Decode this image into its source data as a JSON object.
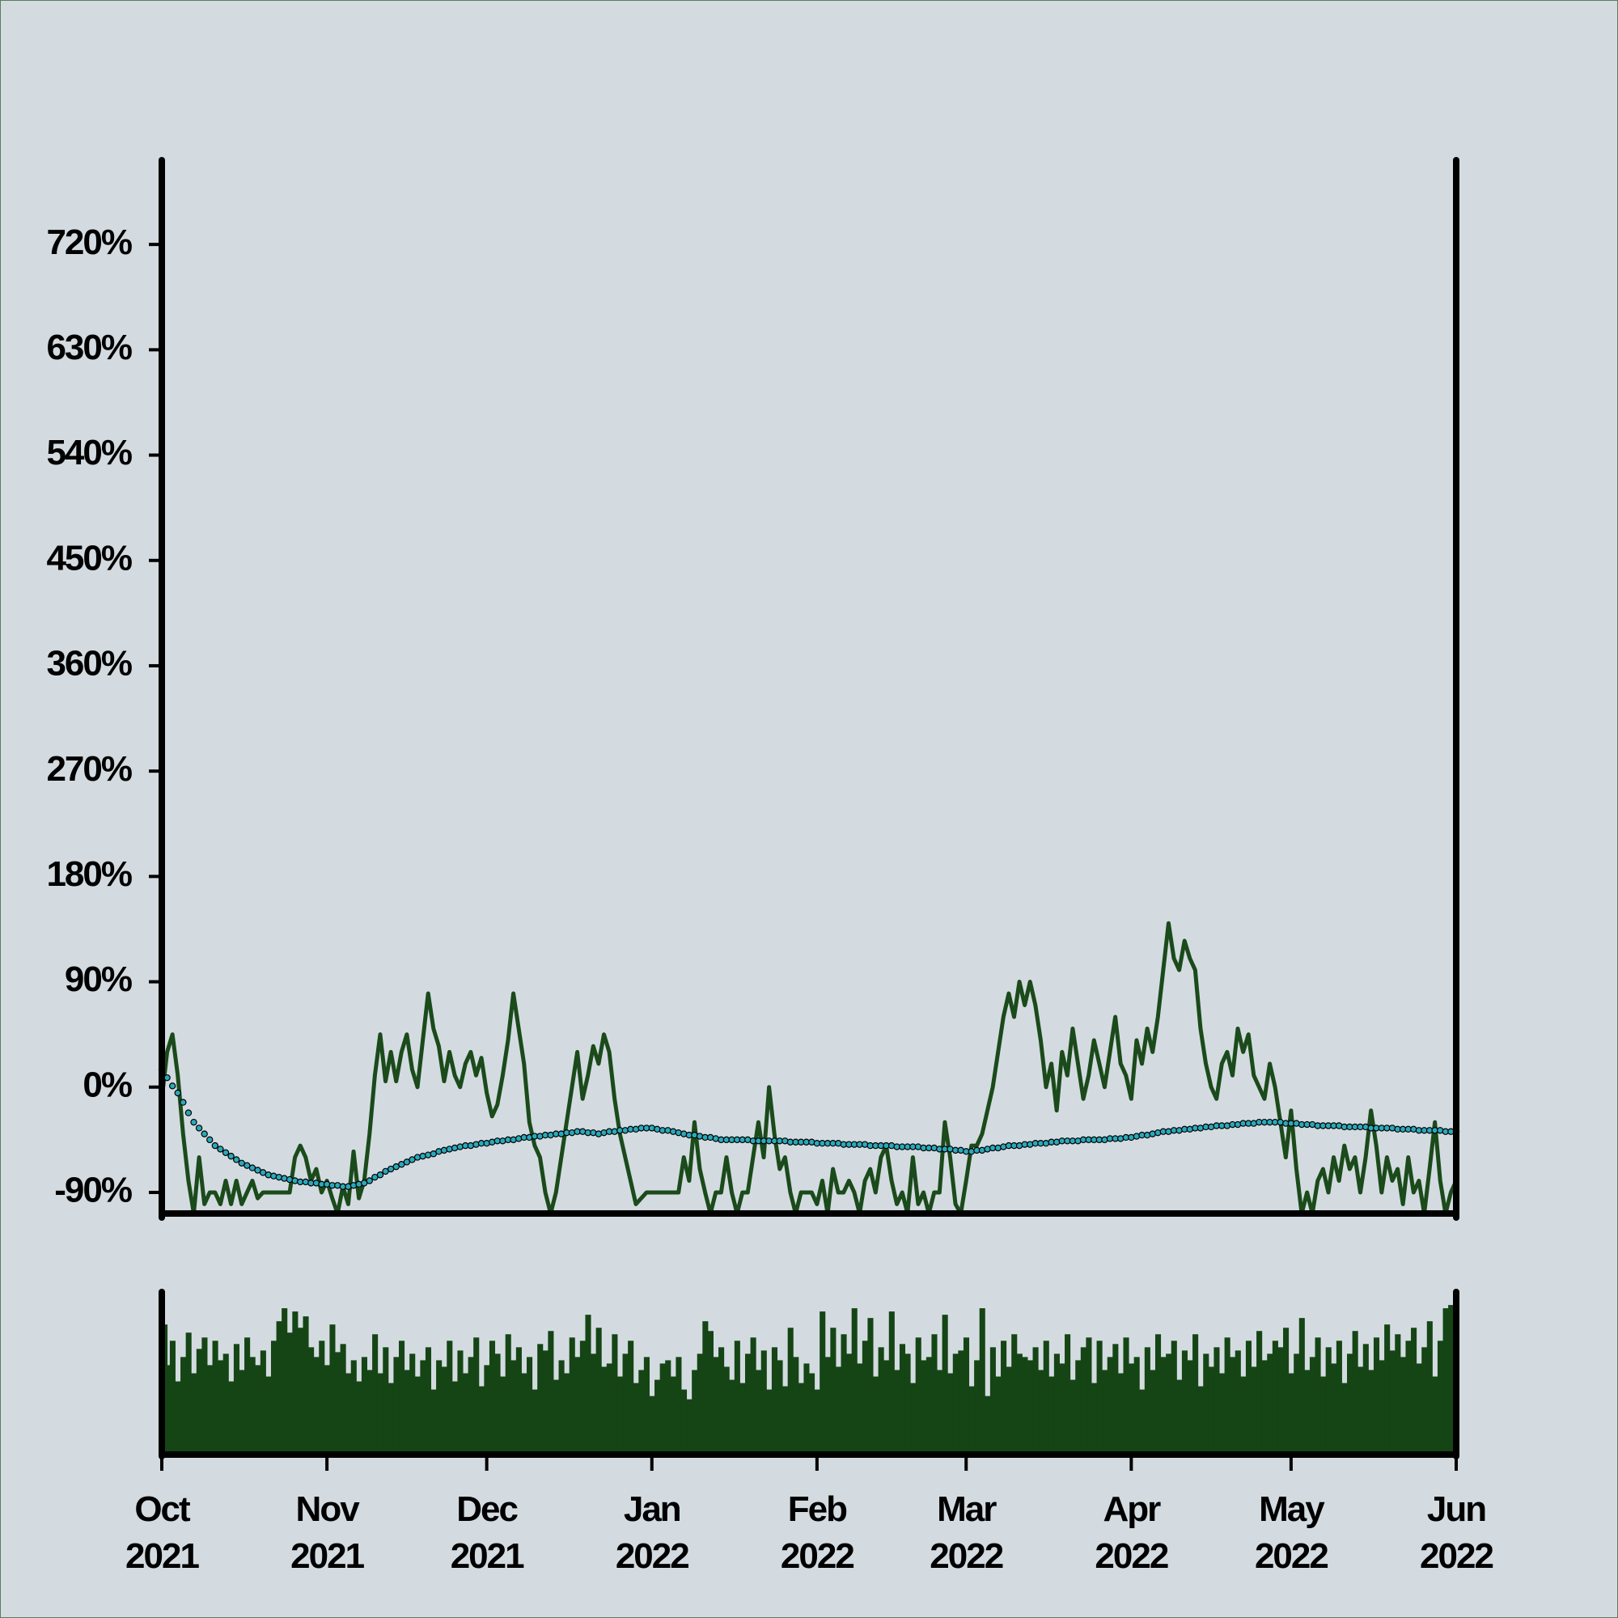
{
  "chart_data": {
    "type": "line",
    "categories": [
      "Oct 2021",
      null,
      null,
      null,
      null,
      null,
      null,
      null,
      null,
      null,
      null,
      null,
      null,
      null,
      null,
      null,
      null,
      null,
      null,
      null,
      null,
      null,
      null,
      null,
      null,
      null,
      null,
      null,
      null,
      null,
      null,
      "Nov 2021",
      null,
      null,
      null,
      null,
      null,
      null,
      null,
      null,
      null,
      null,
      null,
      null,
      null,
      null,
      null,
      null,
      null,
      null,
      null,
      null,
      null,
      null,
      null,
      null,
      null,
      null,
      null,
      null,
      null,
      "Dec 2021",
      null,
      null,
      null,
      null,
      null,
      null,
      null,
      null,
      null,
      null,
      null,
      null,
      null,
      null,
      null,
      null,
      null,
      null,
      null,
      null,
      null,
      null,
      null,
      null,
      null,
      null,
      null,
      null,
      null,
      null,
      "Jan 2022",
      null,
      null,
      null,
      null,
      null,
      null,
      null,
      null,
      null,
      null,
      null,
      null,
      null,
      null,
      null,
      null,
      null,
      null,
      null,
      null,
      null,
      null,
      null,
      null,
      null,
      null,
      null,
      null,
      null,
      null,
      "Feb 2022",
      null,
      null,
      null,
      null,
      null,
      null,
      null,
      null,
      null,
      null,
      null,
      null,
      null,
      null,
      null,
      null,
      null,
      null,
      null,
      null,
      null,
      null,
      null,
      null,
      null,
      null,
      null,
      "Mar 2022",
      null,
      null,
      null,
      null,
      null,
      null,
      null,
      null,
      null,
      null,
      null,
      null,
      null,
      null,
      null,
      null,
      null,
      null,
      null,
      null,
      null,
      null,
      null,
      null,
      null,
      null,
      null,
      null,
      null,
      null,
      "Apr 2022",
      null,
      null,
      null,
      null,
      null,
      null,
      null,
      null,
      null,
      null,
      null,
      null,
      null,
      null,
      null,
      null,
      null,
      null,
      null,
      null,
      null,
      null,
      null,
      null,
      null,
      null,
      null,
      null,
      null,
      "May 2022",
      null,
      null,
      null,
      null,
      null,
      null,
      null,
      null,
      null,
      null,
      null,
      null,
      null,
      null,
      null,
      null,
      null,
      null,
      null,
      null,
      null,
      null,
      null,
      null,
      null,
      null,
      null,
      null,
      null,
      null,
      "Jun 2022"
    ],
    "series": [
      {
        "style": "line",
        "color": "#1b4a1b",
        "values": [
          -10,
          30,
          45,
          10,
          -40,
          -80,
          -108,
          -60,
          -100,
          -90,
          -90,
          -100,
          -80,
          -100,
          -80,
          -100,
          -90,
          -80,
          -95,
          -90,
          -90,
          -90,
          -90,
          -90,
          -90,
          -60,
          -50,
          -60,
          -80,
          -70,
          -90,
          -80,
          -95,
          -108,
          -85,
          -100,
          -55,
          -95,
          -80,
          -40,
          10,
          45,
          5,
          30,
          5,
          30,
          45,
          15,
          0,
          40,
          80,
          50,
          35,
          5,
          30,
          10,
          0,
          20,
          30,
          10,
          25,
          -5,
          -25,
          -15,
          10,
          40,
          80,
          50,
          20,
          -30,
          -50,
          -60,
          -90,
          -108,
          -90,
          -60,
          -30,
          0,
          30,
          -10,
          10,
          35,
          20,
          45,
          30,
          -10,
          -40,
          -60,
          -80,
          -100,
          -95,
          -90,
          -90,
          -90,
          -90,
          -90,
          -90,
          -90,
          -60,
          -80,
          -30,
          -70,
          -90,
          -108,
          -90,
          -90,
          -60,
          -90,
          -108,
          -90,
          -90,
          -60,
          -30,
          -60,
          0,
          -40,
          -70,
          -60,
          -90,
          -108,
          -90,
          -90,
          -90,
          -100,
          -80,
          -108,
          -70,
          -90,
          -90,
          -80,
          -90,
          -108,
          -80,
          -70,
          -90,
          -60,
          -50,
          -80,
          -100,
          -90,
          -108,
          -60,
          -100,
          -90,
          -108,
          -90,
          -90,
          -30,
          -60,
          -100,
          -108,
          -80,
          -50,
          -50,
          -40,
          -20,
          0,
          30,
          60,
          80,
          60,
          90,
          70,
          90,
          70,
          40,
          0,
          20,
          -20,
          30,
          10,
          50,
          20,
          -10,
          10,
          40,
          20,
          0,
          30,
          60,
          20,
          10,
          -10,
          40,
          20,
          50,
          30,
          60,
          100,
          140,
          110,
          100,
          125,
          110,
          100,
          50,
          20,
          0,
          -10,
          20,
          30,
          10,
          50,
          30,
          45,
          10,
          0,
          -10,
          20,
          0,
          -30,
          -60,
          -20,
          -70,
          -108,
          -90,
          -108,
          -80,
          -70,
          -90,
          -60,
          -80,
          -50,
          -70,
          -60,
          -90,
          -60,
          -20,
          -50,
          -90,
          -60,
          -80,
          -70,
          -100,
          -60,
          -90,
          -80,
          -108,
          -70,
          -30,
          -80,
          -108,
          -90,
          -80
        ]
      },
      {
        "style": "dots",
        "color": "#2aa9ba",
        "values": [
          15,
          8,
          1,
          -5,
          -13,
          -22,
          -30,
          -35,
          -40,
          -45,
          -50,
          -53,
          -56,
          -59,
          -62,
          -65,
          -67,
          -69,
          -71,
          -73,
          -75,
          -76,
          -77,
          -78,
          -79,
          -80,
          -81,
          -81,
          -82,
          -82,
          -83,
          -83,
          -84,
          -84,
          -85,
          -85,
          -84,
          -83,
          -82,
          -80,
          -77,
          -75,
          -72,
          -70,
          -68,
          -66,
          -64,
          -62,
          -60,
          -59,
          -58,
          -57,
          -55,
          -54,
          -53,
          -52,
          -51,
          -50,
          -50,
          -49,
          -48,
          -48,
          -47,
          -46,
          -46,
          -45,
          -45,
          -44,
          -43,
          -43,
          -42,
          -42,
          -41,
          -41,
          -40,
          -40,
          -39,
          -39,
          -38,
          -38,
          -39,
          -39,
          -40,
          -39,
          -38,
          -38,
          -37,
          -37,
          -36,
          -36,
          -35,
          -35,
          -35,
          -36,
          -37,
          -37,
          -38,
          -39,
          -40,
          -41,
          -41,
          -42,
          -43,
          -43,
          -44,
          -45,
          -45,
          -45,
          -45,
          -45,
          -45,
          -46,
          -46,
          -46,
          -46,
          -46,
          -46,
          -46,
          -47,
          -47,
          -47,
          -47,
          -47,
          -48,
          -48,
          -48,
          -48,
          -48,
          -49,
          -49,
          -49,
          -49,
          -49,
          -50,
          -50,
          -50,
          -50,
          -50,
          -51,
          -51,
          -51,
          -51,
          -51,
          -52,
          -52,
          -52,
          -53,
          -53,
          -53,
          -54,
          -54,
          -55,
          -55,
          -54,
          -54,
          -53,
          -52,
          -52,
          -51,
          -50,
          -50,
          -50,
          -49,
          -49,
          -48,
          -48,
          -48,
          -47,
          -47,
          -46,
          -46,
          -46,
          -46,
          -45,
          -45,
          -45,
          -45,
          -45,
          -44,
          -44,
          -44,
          -43,
          -43,
          -42,
          -41,
          -41,
          -40,
          -39,
          -38,
          -38,
          -37,
          -37,
          -36,
          -36,
          -35,
          -35,
          -34,
          -34,
          -33,
          -33,
          -33,
          -32,
          -32,
          -31,
          -31,
          -31,
          -30,
          -30,
          -30,
          -30,
          -30,
          -31,
          -31,
          -31,
          -32,
          -32,
          -32,
          -33,
          -33,
          -33,
          -33,
          -33,
          -34,
          -34,
          -34,
          -34,
          -34,
          -35,
          -35,
          -35,
          -35,
          -35,
          -36,
          -36,
          -36,
          -36,
          -37,
          -37,
          -37,
          -37,
          -37,
          -38,
          -38,
          -38
        ]
      }
    ],
    "ylim": [
      -108,
      792
    ],
    "yticks": [
      {
        "value": -90,
        "label": "-90%"
      },
      {
        "value": 0,
        "label": "0%"
      },
      {
        "value": 90,
        "label": "90%"
      },
      {
        "value": 180,
        "label": "180%"
      },
      {
        "value": 270,
        "label": "270%"
      },
      {
        "value": 360,
        "label": "360%"
      },
      {
        "value": 450,
        "label": "450%"
      },
      {
        "value": 540,
        "label": "540%"
      },
      {
        "value": 630,
        "label": "630%"
      },
      {
        "value": 720,
        "label": "720%"
      }
    ],
    "volume": {
      "type": "bar",
      "color": "#154515",
      "ylim": [
        0,
        100
      ],
      "values": [
        80,
        55,
        70,
        45,
        60,
        75,
        50,
        65,
        72,
        55,
        70,
        58,
        62,
        45,
        68,
        52,
        72,
        60,
        55,
        64,
        48,
        70,
        82,
        90,
        75,
        88,
        78,
        85,
        66,
        60,
        70,
        55,
        80,
        63,
        68,
        50,
        58,
        45,
        60,
        52,
        74,
        50,
        66,
        44,
        60,
        70,
        52,
        62,
        48,
        58,
        66,
        40,
        58,
        54,
        70,
        45,
        64,
        50,
        60,
        72,
        42,
        55,
        70,
        62,
        48,
        74,
        58,
        66,
        50,
        60,
        40,
        68,
        64,
        76,
        46,
        58,
        50,
        72,
        60,
        70,
        86,
        62,
        78,
        54,
        56,
        74,
        48,
        62,
        70,
        44,
        52,
        60,
        36,
        46,
        56,
        58,
        48,
        60,
        40,
        34,
        52,
        62,
        82,
        76,
        60,
        66,
        54,
        46,
        70,
        44,
        62,
        72,
        52,
        64,
        40,
        66,
        58,
        42,
        78,
        60,
        44,
        56,
        50,
        40,
        88,
        60,
        78,
        54,
        74,
        62,
        90,
        56,
        70,
        84,
        48,
        66,
        58,
        88,
        52,
        68,
        62,
        44,
        72,
        58,
        60,
        74,
        52,
        86,
        50,
        62,
        64,
        72,
        42,
        58,
        90,
        36,
        66,
        48,
        70,
        54,
        74,
        62,
        60,
        58,
        66,
        52,
        70,
        48,
        62,
        56,
        74,
        46,
        58,
        66,
        72,
        44,
        70,
        52,
        60,
        68,
        50,
        72,
        56,
        60,
        40,
        66,
        52,
        74,
        60,
        62,
        70,
        46,
        64,
        58,
        74,
        42,
        62,
        54,
        66,
        50,
        72,
        60,
        64,
        48,
        70,
        54,
        76,
        58,
        62,
        70,
        66,
        78,
        50,
        62,
        84,
        52,
        60,
        72,
        48,
        66,
        56,
        70,
        44,
        62,
        76,
        54,
        68,
        52,
        72,
        58,
        80,
        64,
        74,
        60,
        70,
        78,
        56,
        66,
        82,
        48,
        70,
        90,
        92,
        86
      ]
    }
  }
}
